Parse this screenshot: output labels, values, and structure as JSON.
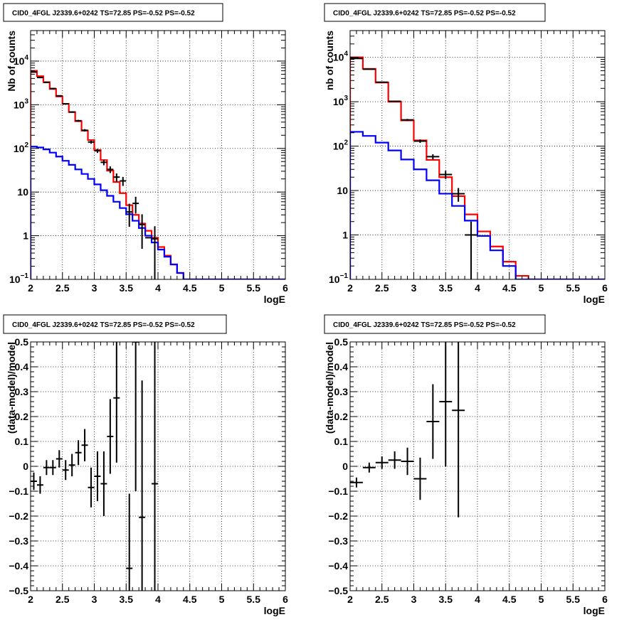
{
  "chart_data": [
    {
      "type": "line",
      "title": "CID0_4FGL J2339.6+0242 TS=72.85 PS=-0.52 PS=-0.52",
      "xlabel": "logE",
      "ylabel": "Nb of counts",
      "xlim": [
        2,
        6
      ],
      "ylim": [
        0.1,
        50000
      ],
      "yscale": "log",
      "grid": true,
      "xticks": [
        "2",
        "2.5",
        "3",
        "3.5",
        "4",
        "4.5",
        "5",
        "5.5",
        "6"
      ],
      "yticks": [
        {
          "value": 0.1,
          "base": "10",
          "exp": "−1"
        },
        {
          "value": 1,
          "label": "1"
        },
        {
          "value": 10,
          "label": "10"
        },
        {
          "value": 100,
          "base": "10",
          "exp": "2"
        },
        {
          "value": 1000,
          "base": "10",
          "exp": "3"
        },
        {
          "value": 10000,
          "base": "10",
          "exp": "4"
        }
      ],
      "bin_edges": [
        2.0,
        2.1,
        2.2,
        2.3,
        2.4,
        2.5,
        2.6,
        2.7,
        2.8,
        2.9,
        3.0,
        3.1,
        3.2,
        3.3,
        3.4,
        3.5,
        3.6,
        3.7,
        3.8,
        3.9,
        4.0,
        4.1,
        4.2,
        4.3,
        4.4,
        4.5,
        4.6,
        4.7,
        4.8,
        4.9,
        5.0,
        5.1,
        5.2,
        5.3,
        5.4,
        5.5,
        5.6,
        5.7,
        5.8,
        5.9,
        6.0
      ],
      "series": [
        {
          "color": "#ff0000",
          "style": "step",
          "values": [
            6000,
            4500,
            3300,
            2300,
            1550,
            1050,
            680,
            420,
            255,
            155,
            92,
            54,
            31,
            17,
            9.4,
            5.0,
            3.0,
            1.9,
            1.3,
            0.9,
            0.55,
            0.35,
            0.22,
            0.14,
            0.1,
            0.1,
            0.1,
            0.1,
            0.1,
            0.1,
            0.1,
            0.1,
            0.1,
            0.1,
            0.1,
            0.1,
            0.1,
            0.1,
            0.1,
            0.1
          ]
        },
        {
          "color": "#0000ff",
          "style": "step",
          "values": [
            110,
            105,
            95,
            80,
            65,
            52,
            42,
            33,
            26,
            20,
            15,
            11,
            8.2,
            6.0,
            4.3,
            3.1,
            2.2,
            1.5,
            1.0,
            0.7,
            0.48,
            0.33,
            0.22,
            0.14,
            0.1,
            0.1,
            0.1,
            0.1,
            0.1,
            0.1,
            0.1,
            0.1,
            0.1,
            0.1,
            0.1,
            0.1,
            0.1,
            0.1,
            0.1,
            0.1
          ]
        },
        {
          "color": "#000000",
          "style": "points",
          "x": [
            2.05,
            2.15,
            2.25,
            2.35,
            2.45,
            2.55,
            2.65,
            2.75,
            2.85,
            2.95,
            3.05,
            3.15,
            3.25,
            3.35,
            3.45,
            3.55,
            3.65,
            3.75,
            3.85,
            3.95
          ],
          "values": [
            5600,
            4200,
            3250,
            2350,
            1600,
            1050,
            680,
            430,
            260,
            140,
            88,
            48,
            33,
            22,
            18,
            3.5,
            5.5,
            1.8,
            0.9,
            0.85
          ],
          "errors": [
            [
              75,
              75
            ],
            [
              65,
              65
            ],
            [
              57,
              57
            ],
            [
              48,
              48
            ],
            [
              40,
              40
            ],
            [
              32,
              32
            ],
            [
              26,
              26
            ],
            [
              21,
              21
            ],
            [
              16,
              16
            ],
            [
              12,
              12
            ],
            [
              9.4,
              9.4
            ],
            [
              6.9,
              6.9
            ],
            [
              5.7,
              5.7
            ],
            [
              4.7,
              4.7
            ],
            [
              4.2,
              4.2
            ],
            [
              1.9,
              1.9
            ],
            [
              2.3,
              2.3
            ],
            [
              1.3,
              1.3
            ],
            [
              0,
              0
            ],
            [
              0.8,
              0.8
            ]
          ]
        }
      ]
    },
    {
      "type": "line",
      "title": "CID0_4FGL J2339.6+0242 TS=72.85 PS=-0.52 PS=-0.52",
      "xlabel": "logE",
      "ylabel": "nb of counts",
      "xlim": [
        2,
        6
      ],
      "ylim": [
        0.1,
        40000
      ],
      "yscale": "log",
      "grid": true,
      "xticks": [
        "2",
        "2.5",
        "3",
        "3.5",
        "4",
        "4.5",
        "5",
        "5.5",
        "6"
      ],
      "yticks": [
        {
          "value": 0.1,
          "base": "10",
          "exp": "−1"
        },
        {
          "value": 1,
          "label": "1"
        },
        {
          "value": 10,
          "label": "10"
        },
        {
          "value": 100,
          "base": "10",
          "exp": "2"
        },
        {
          "value": 1000,
          "base": "10",
          "exp": "3"
        },
        {
          "value": 10000,
          "base": "10",
          "exp": "4"
        }
      ],
      "bin_edges": [
        2.0,
        2.2,
        2.4,
        2.6,
        2.8,
        3.0,
        3.2,
        3.4,
        3.6,
        3.8,
        4.0,
        4.2,
        4.4,
        4.6,
        4.8,
        5.0,
        5.2,
        5.4,
        5.6,
        5.8,
        6.0
      ],
      "series": [
        {
          "color": "#ff0000",
          "style": "step",
          "values": [
            10000,
            5500,
            2700,
            1000,
            380,
            135,
            49,
            20,
            7.5,
            2.9,
            1.2,
            0.55,
            0.25,
            0.12,
            0.1,
            0.1,
            0.1,
            0.1,
            0.1,
            0.1
          ]
        },
        {
          "color": "#0000ff",
          "style": "step",
          "values": [
            210,
            170,
            120,
            80,
            50,
            30,
            17,
            8.5,
            4.5,
            2.1,
            0.95,
            0.45,
            0.2,
            0.1,
            0.1,
            0.1,
            0.1,
            0.1,
            0.1,
            0.1
          ]
        },
        {
          "color": "#000000",
          "style": "points",
          "x": [
            2.1,
            2.3,
            2.5,
            2.7,
            2.9,
            3.1,
            3.3,
            3.5,
            3.7,
            3.9
          ],
          "values": [
            9400,
            5400,
            2750,
            1020,
            390,
            130,
            58,
            23,
            8.5,
            1.0
          ],
          "errors": [
            [
              97,
              97
            ],
            [
              73,
              73
            ],
            [
              52,
              52
            ],
            [
              32,
              32
            ],
            [
              20,
              20
            ],
            [
              11.4,
              11.4
            ],
            [
              7.6,
              7.6
            ],
            [
              4.8,
              4.8
            ],
            [
              2.9,
              2.9
            ],
            [
              1.0,
              1.0
            ]
          ]
        }
      ]
    },
    {
      "type": "scatter",
      "title": "CID0_4FGL J2339.6+0242 TS=72.85 PS=-0.52 PS=-0.52",
      "xlabel": "logE",
      "ylabel": "(data-model)/model",
      "xlim": [
        2,
        6
      ],
      "ylim": [
        -0.5,
        0.5
      ],
      "grid": true,
      "xticks": [
        "2",
        "2.5",
        "3",
        "3.5",
        "4",
        "4.5",
        "5",
        "5.5",
        "6"
      ],
      "yticks": [
        "−0.5",
        "−0.4",
        "−0.3",
        "−0.2",
        "−0.1",
        "0",
        "0.1",
        "0.2",
        "0.3",
        "0.4",
        "0.5"
      ],
      "series": [
        {
          "color": "#000000",
          "style": "points",
          "xerr": 0.05,
          "x": [
            2.05,
            2.15,
            2.25,
            2.35,
            2.45,
            2.55,
            2.65,
            2.75,
            2.85,
            2.95,
            3.05,
            3.15,
            3.25,
            3.35,
            3.55,
            3.65,
            3.75,
            3.95
          ],
          "values": [
            -0.06,
            -0.075,
            -0.005,
            -0.005,
            0.03,
            -0.015,
            0.005,
            0.055,
            0.085,
            -0.085,
            -0.04,
            -0.07,
            0.12,
            0.275,
            -0.41,
            0.5,
            -0.205,
            -0.07
          ],
          "errors": [
            [
              0.035,
              0.035
            ],
            [
              0.035,
              0.035
            ],
            [
              0.03,
              0.03
            ],
            [
              0.03,
              0.03
            ],
            [
              0.035,
              0.035
            ],
            [
              0.04,
              0.04
            ],
            [
              0.045,
              0.045
            ],
            [
              0.05,
              0.05
            ],
            [
              0.065,
              0.065
            ],
            [
              0.08,
              0.08
            ],
            [
              0.1,
              0.1
            ],
            [
              0.13,
              0.13
            ],
            [
              0.15,
              0.15
            ],
            [
              0.26,
              0.26
            ],
            [
              0.3,
              0.3
            ],
            [
              0.6,
              0.6
            ],
            [
              0.55,
              0.55
            ],
            [
              1.0,
              1.0
            ]
          ]
        }
      ]
    },
    {
      "type": "scatter",
      "title": "CID0_4FGL J2339.6+0242 TS=72.85 PS=-0.52 PS=-0.52",
      "xlabel": "logE",
      "ylabel": "(data-model)/model",
      "xlim": [
        2,
        6
      ],
      "ylim": [
        -0.5,
        0.5
      ],
      "grid": true,
      "xticks": [
        "2",
        "2.5",
        "3",
        "3.5",
        "4",
        "4.5",
        "5",
        "5.5",
        "6"
      ],
      "yticks": [
        "−0.5",
        "−0.4",
        "−0.3",
        "−0.2",
        "−0.1",
        "0",
        "0.1",
        "0.2",
        "0.3",
        "0.4",
        "0.5"
      ],
      "series": [
        {
          "color": "#000000",
          "style": "points",
          "xerr": 0.1,
          "x": [
            2.1,
            2.3,
            2.5,
            2.7,
            2.9,
            3.1,
            3.3,
            3.5,
            3.7
          ],
          "values": [
            -0.065,
            -0.005,
            0.015,
            0.025,
            0.02,
            -0.05,
            0.18,
            0.26,
            0.225
          ],
          "errors": [
            [
              0.02,
              0.02
            ],
            [
              0.02,
              0.02
            ],
            [
              0.025,
              0.025
            ],
            [
              0.035,
              0.035
            ],
            [
              0.055,
              0.055
            ],
            [
              0.085,
              0.085
            ],
            [
              0.15,
              0.15
            ],
            [
              0.26,
              0.26
            ],
            [
              0.43,
              0.43
            ]
          ]
        }
      ]
    }
  ]
}
